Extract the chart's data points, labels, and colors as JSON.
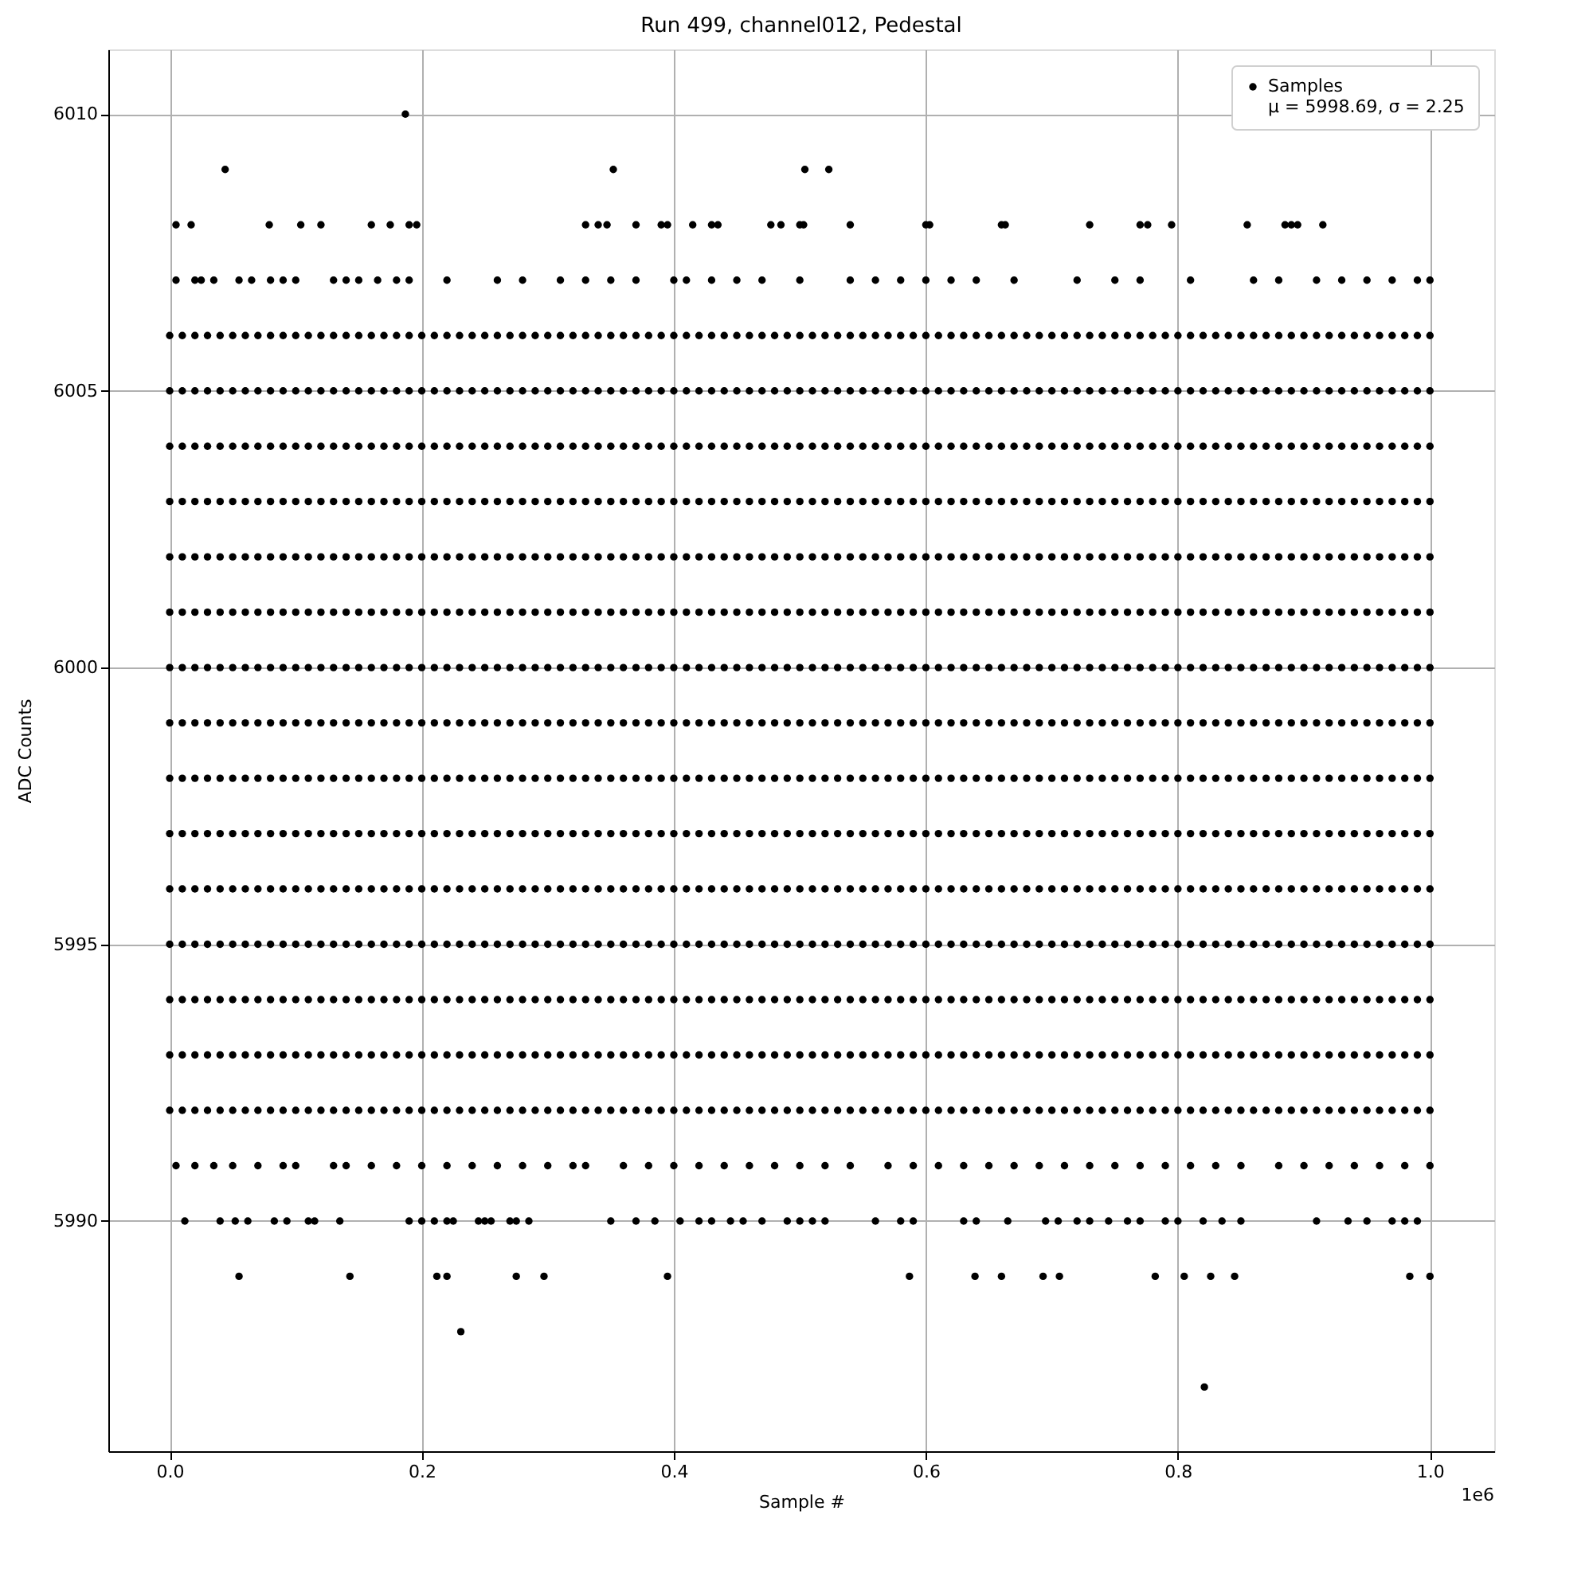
{
  "chart_data": {
    "type": "scatter",
    "title": "Run 499, channel012, Pedestal",
    "xlabel": "Sample #",
    "ylabel": "ADC Counts",
    "annotations": [
      "1e6"
    ],
    "xlim": [
      -0.0487,
      1.051
    ],
    "ylim": [
      5985.84,
      6011.17
    ],
    "xticks": [
      {
        "value": 0,
        "label": "0.0"
      },
      0.2,
      0.4,
      0.6,
      0.8,
      {
        "value": 1,
        "label": "1.0"
      }
    ],
    "yticks": [
      5990,
      5995,
      6000,
      6005,
      6010
    ],
    "grid": true,
    "legend": "top right",
    "marker": "circle",
    "x": [
      0,
      0.01,
      0.02,
      0.03,
      0.04,
      0.05,
      0.06,
      0.07,
      0.08,
      0.09,
      0.1,
      0.11,
      0.12,
      0.13,
      0.14,
      0.15,
      0.16,
      0.17,
      0.18,
      0.19,
      0.2,
      0.21,
      0.22,
      0.23,
      0.24,
      0.25,
      0.26,
      0.27,
      0.28,
      0.29,
      0.3,
      0.31,
      0.32,
      0.33,
      0.34,
      0.35,
      0.36,
      0.37,
      0.38,
      0.39,
      0.4,
      0.41,
      0.42,
      0.43,
      0.44,
      0.45,
      0.46,
      0.47,
      0.48,
      0.49,
      0.5,
      0.51,
      0.52,
      0.53,
      0.54,
      0.55,
      0.56,
      0.57,
      0.58,
      0.59,
      0.6,
      0.61,
      0.62,
      0.63,
      0.64,
      0.65,
      0.66,
      0.67,
      0.68,
      0.69,
      0.7,
      0.71,
      0.72,
      0.73,
      0.74,
      0.75,
      0.76,
      0.77,
      0.78,
      0.79,
      0.8,
      0.81,
      0.82,
      0.83,
      0.84,
      0.85,
      0.86,
      0.87,
      0.88,
      0.89,
      0.9,
      0.91,
      0.92,
      0.93,
      0.94,
      0.95,
      0.96,
      0.97,
      0.98,
      0.99,
      1.0
    ],
    "series": [
      {
        "name": "Samples\nμ = 5998.69, σ = 2.25",
        "color": "#000000",
        "values": [
          6000,
          6000,
          6000,
          6000,
          6000,
          6000,
          6000,
          6000,
          6000,
          6000,
          6000,
          6000,
          6000,
          6000,
          6000,
          6000,
          6000,
          6000,
          6000,
          6000,
          6000,
          6000,
          6000,
          6000,
          6000,
          6000,
          6000,
          6000,
          6000,
          6000,
          6000,
          6000,
          6000,
          6000,
          6000,
          6000,
          6000,
          6000,
          6000,
          6000,
          6000,
          6000,
          6000,
          6000,
          6000,
          6000,
          6000,
          6000,
          6000,
          6000,
          6000,
          6000,
          6000,
          6000,
          6000,
          6000,
          6000,
          6000,
          6000,
          6000,
          6000,
          6000,
          6000,
          6000,
          6000,
          6000,
          6000,
          6000,
          6000,
          6000,
          6000,
          6000,
          6000,
          6000,
          6000,
          6000,
          6000,
          6000,
          6000,
          6000,
          6000,
          6000,
          6000,
          6000,
          6000,
          6000,
          6000,
          6000,
          6000,
          6000,
          6000,
          6000,
          6000,
          6000,
          6000,
          6000,
          6000,
          6000,
          6000,
          6000,
          6000
        ]
      },
      {
        "color": "#000000",
        "values": [
          5992,
          5992,
          5992,
          5992,
          5992,
          5992,
          5992,
          5992,
          5992,
          5992,
          5992,
          5992,
          5992,
          5992,
          5992,
          5992,
          5992,
          5992,
          5992,
          5992,
          5992,
          5992,
          5992,
          5992,
          5992,
          5992,
          5992,
          5992,
          5992,
          5992,
          5992,
          5992,
          5992,
          5992,
          5992,
          5992,
          5992,
          5992,
          5992,
          5992,
          5992,
          5992,
          5992,
          5992,
          5992,
          5992,
          5992,
          5992,
          5992,
          5992,
          5992,
          5992,
          5992,
          5992,
          5992,
          5992,
          5992,
          5992,
          5992,
          5992,
          5992,
          5992,
          5992,
          5992,
          5992,
          5992,
          5992,
          5992,
          5992,
          5992,
          5992,
          5992,
          5992,
          5992,
          5992,
          5992,
          5992,
          5992,
          5992,
          5992,
          5992,
          5992,
          5992,
          5992,
          5992,
          5992,
          5992,
          5992,
          5992,
          5992,
          5992,
          5992,
          5992,
          5992,
          5992,
          5992,
          5992,
          5992,
          5992,
          5992,
          5992
        ]
      },
      {
        "color": "#000000",
        "values": [
          5993,
          5993,
          5993,
          5993,
          5993,
          5993,
          5993,
          5993,
          5993,
          5993,
          5993,
          5993,
          5993,
          5993,
          5993,
          5993,
          5993,
          5993,
          5993,
          5993,
          5993,
          5993,
          5993,
          5993,
          5993,
          5993,
          5993,
          5993,
          5993,
          5993,
          5993,
          5993,
          5993,
          5993,
          5993,
          5993,
          5993,
          5993,
          5993,
          5993,
          5993,
          5993,
          5993,
          5993,
          5993,
          5993,
          5993,
          5993,
          5993,
          5993,
          5993,
          5993,
          5993,
          5993,
          5993,
          5993,
          5993,
          5993,
          5993,
          5993,
          5993,
          5993,
          5993,
          5993,
          5993,
          5993,
          5993,
          5993,
          5993,
          5993,
          5993,
          5993,
          5993,
          5993,
          5993,
          5993,
          5993,
          5993,
          5993,
          5993,
          5993,
          5993,
          5993,
          5993,
          5993,
          5993,
          5993,
          5993,
          5993,
          5993,
          5993,
          5993,
          5993,
          5993,
          5993,
          5993,
          5993,
          5993,
          5993,
          5993,
          5993
        ]
      },
      {
        "color": "#000000",
        "values": [
          5994,
          5994,
          5994,
          5994,
          5994,
          5994,
          5994,
          5994,
          5994,
          5994,
          5994,
          5994,
          5994,
          5994,
          5994,
          5994,
          5994,
          5994,
          5994,
          5994,
          5994,
          5994,
          5994,
          5994,
          5994,
          5994,
          5994,
          5994,
          5994,
          5994,
          5994,
          5994,
          5994,
          5994,
          5994,
          5994,
          5994,
          5994,
          5994,
          5994,
          5994,
          5994,
          5994,
          5994,
          5994,
          5994,
          5994,
          5994,
          5994,
          5994,
          5994,
          5994,
          5994,
          5994,
          5994,
          5994,
          5994,
          5994,
          5994,
          5994,
          5994,
          5994,
          5994,
          5994,
          5994,
          5994,
          5994,
          5994,
          5994,
          5994,
          5994,
          5994,
          5994,
          5994,
          5994,
          5994,
          5994,
          5994,
          5994,
          5994,
          5994,
          5994,
          5994,
          5994,
          5994,
          5994,
          5994,
          5994,
          5994,
          5994,
          5994,
          5994,
          5994,
          5994,
          5994,
          5994,
          5994,
          5994,
          5994,
          5994,
          5994
        ]
      },
      {
        "color": "#000000",
        "values": [
          5995,
          5995,
          5995,
          5995,
          5995,
          5995,
          5995,
          5995,
          5995,
          5995,
          5995,
          5995,
          5995,
          5995,
          5995,
          5995,
          5995,
          5995,
          5995,
          5995,
          5995,
          5995,
          5995,
          5995,
          5995,
          5995,
          5995,
          5995,
          5995,
          5995,
          5995,
          5995,
          5995,
          5995,
          5995,
          5995,
          5995,
          5995,
          5995,
          5995,
          5995,
          5995,
          5995,
          5995,
          5995,
          5995,
          5995,
          5995,
          5995,
          5995,
          5995,
          5995,
          5995,
          5995,
          5995,
          5995,
          5995,
          5995,
          5995,
          5995,
          5995,
          5995,
          5995,
          5995,
          5995,
          5995,
          5995,
          5995,
          5995,
          5995,
          5995,
          5995,
          5995,
          5995,
          5995,
          5995,
          5995,
          5995,
          5995,
          5995,
          5995,
          5995,
          5995,
          5995,
          5995,
          5995,
          5995,
          5995,
          5995,
          5995,
          5995,
          5995,
          5995,
          5995,
          5995,
          5995,
          5995,
          5995,
          5995,
          5995,
          5995
        ]
      },
      {
        "color": "#000000",
        "values": [
          5996,
          5996,
          5996,
          5996,
          5996,
          5996,
          5996,
          5996,
          5996,
          5996,
          5996,
          5996,
          5996,
          5996,
          5996,
          5996,
          5996,
          5996,
          5996,
          5996,
          5996,
          5996,
          5996,
          5996,
          5996,
          5996,
          5996,
          5996,
          5996,
          5996,
          5996,
          5996,
          5996,
          5996,
          5996,
          5996,
          5996,
          5996,
          5996,
          5996,
          5996,
          5996,
          5996,
          5996,
          5996,
          5996,
          5996,
          5996,
          5996,
          5996,
          5996,
          5996,
          5996,
          5996,
          5996,
          5996,
          5996,
          5996,
          5996,
          5996,
          5996,
          5996,
          5996,
          5996,
          5996,
          5996,
          5996,
          5996,
          5996,
          5996,
          5996,
          5996,
          5996,
          5996,
          5996,
          5996,
          5996,
          5996,
          5996,
          5996,
          5996,
          5996,
          5996,
          5996,
          5996,
          5996,
          5996,
          5996,
          5996,
          5996,
          5996,
          5996,
          5996,
          5996,
          5996,
          5996,
          5996,
          5996,
          5996,
          5996,
          5996
        ]
      },
      {
        "color": "#000000",
        "values": [
          5997,
          5997,
          5997,
          5997,
          5997,
          5997,
          5997,
          5997,
          5997,
          5997,
          5997,
          5997,
          5997,
          5997,
          5997,
          5997,
          5997,
          5997,
          5997,
          5997,
          5997,
          5997,
          5997,
          5997,
          5997,
          5997,
          5997,
          5997,
          5997,
          5997,
          5997,
          5997,
          5997,
          5997,
          5997,
          5997,
          5997,
          5997,
          5997,
          5997,
          5997,
          5997,
          5997,
          5997,
          5997,
          5997,
          5997,
          5997,
          5997,
          5997,
          5997,
          5997,
          5997,
          5997,
          5997,
          5997,
          5997,
          5997,
          5997,
          5997,
          5997,
          5997,
          5997,
          5997,
          5997,
          5997,
          5997,
          5997,
          5997,
          5997,
          5997,
          5997,
          5997,
          5997,
          5997,
          5997,
          5997,
          5997,
          5997,
          5997,
          5997,
          5997,
          5997,
          5997,
          5997,
          5997,
          5997,
          5997,
          5997,
          5997,
          5997,
          5997,
          5997,
          5997,
          5997,
          5997,
          5997,
          5997,
          5997,
          5997,
          5997
        ]
      },
      {
        "color": "#000000",
        "values": [
          5998,
          5998,
          5998,
          5998,
          5998,
          5998,
          5998,
          5998,
          5998,
          5998,
          5998,
          5998,
          5998,
          5998,
          5998,
          5998,
          5998,
          5998,
          5998,
          5998,
          5998,
          5998,
          5998,
          5998,
          5998,
          5998,
          5998,
          5998,
          5998,
          5998,
          5998,
          5998,
          5998,
          5998,
          5998,
          5998,
          5998,
          5998,
          5998,
          5998,
          5998,
          5998,
          5998,
          5998,
          5998,
          5998,
          5998,
          5998,
          5998,
          5998,
          5998,
          5998,
          5998,
          5998,
          5998,
          5998,
          5998,
          5998,
          5998,
          5998,
          5998,
          5998,
          5998,
          5998,
          5998,
          5998,
          5998,
          5998,
          5998,
          5998,
          5998,
          5998,
          5998,
          5998,
          5998,
          5998,
          5998,
          5998,
          5998,
          5998,
          5998,
          5998,
          5998,
          5998,
          5998,
          5998,
          5998,
          5998,
          5998,
          5998,
          5998,
          5998,
          5998,
          5998,
          5998,
          5998,
          5998,
          5998,
          5998,
          5998,
          5998
        ]
      },
      {
        "color": "#000000",
        "values": [
          5999,
          5999,
          5999,
          5999,
          5999,
          5999,
          5999,
          5999,
          5999,
          5999,
          5999,
          5999,
          5999,
          5999,
          5999,
          5999,
          5999,
          5999,
          5999,
          5999,
          5999,
          5999,
          5999,
          5999,
          5999,
          5999,
          5999,
          5999,
          5999,
          5999,
          5999,
          5999,
          5999,
          5999,
          5999,
          5999,
          5999,
          5999,
          5999,
          5999,
          5999,
          5999,
          5999,
          5999,
          5999,
          5999,
          5999,
          5999,
          5999,
          5999,
          5999,
          5999,
          5999,
          5999,
          5999,
          5999,
          5999,
          5999,
          5999,
          5999,
          5999,
          5999,
          5999,
          5999,
          5999,
          5999,
          5999,
          5999,
          5999,
          5999,
          5999,
          5999,
          5999,
          5999,
          5999,
          5999,
          5999,
          5999,
          5999,
          5999,
          5999,
          5999,
          5999,
          5999,
          5999,
          5999,
          5999,
          5999,
          5999,
          5999,
          5999,
          5999,
          5999,
          5999,
          5999,
          5999,
          5999,
          5999,
          5999,
          5999,
          5999
        ]
      },
      {
        "color": "#000000",
        "values": [
          6001,
          6001,
          6001,
          6001,
          6001,
          6001,
          6001,
          6001,
          6001,
          6001,
          6001,
          6001,
          6001,
          6001,
          6001,
          6001,
          6001,
          6001,
          6001,
          6001,
          6001,
          6001,
          6001,
          6001,
          6001,
          6001,
          6001,
          6001,
          6001,
          6001,
          6001,
          6001,
          6001,
          6001,
          6001,
          6001,
          6001,
          6001,
          6001,
          6001,
          6001,
          6001,
          6001,
          6001,
          6001,
          6001,
          6001,
          6001,
          6001,
          6001,
          6001,
          6001,
          6001,
          6001,
          6001,
          6001,
          6001,
          6001,
          6001,
          6001,
          6001,
          6001,
          6001,
          6001,
          6001,
          6001,
          6001,
          6001,
          6001,
          6001,
          6001,
          6001,
          6001,
          6001,
          6001,
          6001,
          6001,
          6001,
          6001,
          6001,
          6001,
          6001,
          6001,
          6001,
          6001,
          6001,
          6001,
          6001,
          6001,
          6001,
          6001,
          6001,
          6001,
          6001,
          6001,
          6001,
          6001,
          6001,
          6001,
          6001,
          6001
        ]
      },
      {
        "color": "#000000",
        "values": [
          6002,
          6002,
          6002,
          6002,
          6002,
          6002,
          6002,
          6002,
          6002,
          6002,
          6002,
          6002,
          6002,
          6002,
          6002,
          6002,
          6002,
          6002,
          6002,
          6002,
          6002,
          6002,
          6002,
          6002,
          6002,
          6002,
          6002,
          6002,
          6002,
          6002,
          6002,
          6002,
          6002,
          6002,
          6002,
          6002,
          6002,
          6002,
          6002,
          6002,
          6002,
          6002,
          6002,
          6002,
          6002,
          6002,
          6002,
          6002,
          6002,
          6002,
          6002,
          6002,
          6002,
          6002,
          6002,
          6002,
          6002,
          6002,
          6002,
          6002,
          6002,
          6002,
          6002,
          6002,
          6002,
          6002,
          6002,
          6002,
          6002,
          6002,
          6002,
          6002,
          6002,
          6002,
          6002,
          6002,
          6002,
          6002,
          6002,
          6002,
          6002,
          6002,
          6002,
          6002,
          6002,
          6002,
          6002,
          6002,
          6002,
          6002,
          6002,
          6002,
          6002,
          6002,
          6002,
          6002,
          6002,
          6002,
          6002,
          6002,
          6002
        ]
      },
      {
        "color": "#000000",
        "values": [
          6003,
          6003,
          6003,
          6003,
          6003,
          6003,
          6003,
          6003,
          6003,
          6003,
          6003,
          6003,
          6003,
          6003,
          6003,
          6003,
          6003,
          6003,
          6003,
          6003,
          6003,
          6003,
          6003,
          6003,
          6003,
          6003,
          6003,
          6003,
          6003,
          6003,
          6003,
          6003,
          6003,
          6003,
          6003,
          6003,
          6003,
          6003,
          6003,
          6003,
          6003,
          6003,
          6003,
          6003,
          6003,
          6003,
          6003,
          6003,
          6003,
          6003,
          6003,
          6003,
          6003,
          6003,
          6003,
          6003,
          6003,
          6003,
          6003,
          6003,
          6003,
          6003,
          6003,
          6003,
          6003,
          6003,
          6003,
          6003,
          6003,
          6003,
          6003,
          6003,
          6003,
          6003,
          6003,
          6003,
          6003,
          6003,
          6003,
          6003,
          6003,
          6003,
          6003,
          6003,
          6003,
          6003,
          6003,
          6003,
          6003,
          6003,
          6003,
          6003,
          6003,
          6003,
          6003,
          6003,
          6003,
          6003,
          6003,
          6003,
          6003
        ]
      },
      {
        "color": "#000000",
        "values": [
          6004,
          6004,
          6004,
          6004,
          6004,
          6004,
          6004,
          6004,
          6004,
          6004,
          6004,
          6004,
          6004,
          6004,
          6004,
          6004,
          6004,
          6004,
          6004,
          6004,
          6004,
          6004,
          6004,
          6004,
          6004,
          6004,
          6004,
          6004,
          6004,
          6004,
          6004,
          6004,
          6004,
          6004,
          6004,
          6004,
          6004,
          6004,
          6004,
          6004,
          6004,
          6004,
          6004,
          6004,
          6004,
          6004,
          6004,
          6004,
          6004,
          6004,
          6004,
          6004,
          6004,
          6004,
          6004,
          6004,
          6004,
          6004,
          6004,
          6004,
          6004,
          6004,
          6004,
          6004,
          6004,
          6004,
          6004,
          6004,
          6004,
          6004,
          6004,
          6004,
          6004,
          6004,
          6004,
          6004,
          6004,
          6004,
          6004,
          6004,
          6004,
          6004,
          6004,
          6004,
          6004,
          6004,
          6004,
          6004,
          6004,
          6004,
          6004,
          6004,
          6004,
          6004,
          6004,
          6004,
          6004,
          6004,
          6004,
          6004,
          6004
        ]
      },
      {
        "color": "#000000",
        "values": [
          6005,
          6005,
          6005,
          6005,
          6005,
          6005,
          6005,
          6005,
          6005,
          6005,
          6005,
          6005,
          6005,
          6005,
          6005,
          6005,
          6005,
          6005,
          6005,
          6005,
          6005,
          6005,
          6005,
          6005,
          6005,
          6005,
          6005,
          6005,
          6005,
          6005,
          6005,
          6005,
          6005,
          6005,
          6005,
          6005,
          6005,
          6005,
          6005,
          6005,
          6005,
          6005,
          6005,
          6005,
          6005,
          6005,
          6005,
          6005,
          6005,
          6005,
          6005,
          6005,
          6005,
          6005,
          6005,
          6005,
          6005,
          6005,
          6005,
          6005,
          6005,
          6005,
          6005,
          6005,
          6005,
          6005,
          6005,
          6005,
          6005,
          6005,
          6005,
          6005,
          6005,
          6005,
          6005,
          6005,
          6005,
          6005,
          6005,
          6005,
          6005,
          6005,
          6005,
          6005,
          6005,
          6005,
          6005,
          6005,
          6005,
          6005,
          6005,
          6005,
          6005,
          6005,
          6005,
          6005,
          6005,
          6005,
          6005,
          6005,
          6005
        ]
      },
      {
        "color": "#000000",
        "values": [
          6006,
          6006,
          6006,
          6006,
          6006,
          6006,
          6006,
          6006,
          6006,
          6006,
          6006,
          6006,
          6006,
          6006,
          6006,
          6006,
          6006,
          6006,
          6006,
          6006,
          6006,
          6006,
          6006,
          6006,
          6006,
          6006,
          6006,
          6006,
          6006,
          6006,
          6006,
          6006,
          6006,
          6006,
          6006,
          6006,
          6006,
          6006,
          6006,
          6006,
          6006,
          6006,
          6006,
          6006,
          6006,
          6006,
          6006,
          6006,
          6006,
          6006,
          6006,
          6006,
          6006,
          6006,
          6006,
          6006,
          6006,
          6006,
          6006,
          6006,
          6006,
          6006,
          6006,
          6006,
          6006,
          6006,
          6006,
          6006,
          6006,
          6006,
          6006,
          6006,
          6006,
          6006,
          6006,
          6006,
          6006,
          6006,
          6006,
          6006,
          6006,
          6006,
          6006,
          6006,
          6006,
          6006,
          6006,
          6006,
          6006,
          6006,
          6006,
          6006,
          6006,
          6006,
          6006,
          6006,
          6006,
          6006,
          6006,
          6006,
          6006
        ]
      },
      {
        "color": "#000000",
        "x": [
          0.187
        ],
        "values": [
          6010
        ]
      },
      {
        "color": "#000000",
        "x": [
          0.044,
          0.352,
          0.504,
          0.523
        ],
        "values": [
          6009,
          6009,
          6009,
          6009
        ]
      },
      {
        "color": "#000000",
        "x": [
          0.005,
          0.017,
          0.079,
          0.104,
          0.12,
          0.16,
          0.175,
          0.19,
          0.196,
          0.33,
          0.34,
          0.347,
          0.37,
          0.39,
          0.395,
          0.415,
          0.43,
          0.435,
          0.477,
          0.485,
          0.5,
          0.503,
          0.54,
          0.6,
          0.603,
          0.66,
          0.663,
          0.73,
          0.77,
          0.776,
          0.795,
          0.855,
          0.885,
          0.89,
          0.895,
          0.915
        ],
        "values": [
          6008,
          6008,
          6008,
          6008,
          6008,
          6008,
          6008,
          6008,
          6008,
          6008,
          6008,
          6008,
          6008,
          6008,
          6008,
          6008,
          6008,
          6008,
          6008,
          6008,
          6008,
          6008,
          6008,
          6008,
          6008,
          6008,
          6008,
          6008,
          6008,
          6008,
          6008,
          6008,
          6008,
          6008,
          6008,
          6008
        ]
      },
      {
        "color": "#000000",
        "x": [
          0.005,
          0.02,
          0.025,
          0.035,
          0.055,
          0.065,
          0.08,
          0.09,
          0.1,
          0.13,
          0.14,
          0.15,
          0.165,
          0.18,
          0.19,
          0.22,
          0.26,
          0.28,
          0.31,
          0.33,
          0.35,
          0.37,
          0.4,
          0.41,
          0.43,
          0.45,
          0.47,
          0.5,
          0.54,
          0.56,
          0.58,
          0.6,
          0.62,
          0.64,
          0.67,
          0.72,
          0.75,
          0.77,
          0.81,
          0.86,
          0.88,
          0.91,
          0.93,
          0.95,
          0.97,
          0.99,
          1.0
        ],
        "values": [
          6007,
          6007,
          6007,
          6007,
          6007,
          6007,
          6007,
          6007,
          6007,
          6007,
          6007,
          6007,
          6007,
          6007,
          6007,
          6007,
          6007,
          6007,
          6007,
          6007,
          6007,
          6007,
          6007,
          6007,
          6007,
          6007,
          6007,
          6007,
          6007,
          6007,
          6007,
          6007,
          6007,
          6007,
          6007,
          6007,
          6007,
          6007,
          6007,
          6007,
          6007,
          6007,
          6007,
          6007,
          6007,
          6007,
          6007
        ]
      },
      {
        "color": "#000000",
        "x": [
          0.005,
          0.02,
          0.035,
          0.05,
          0.07,
          0.09,
          0.1,
          0.13,
          0.14,
          0.16,
          0.18,
          0.2,
          0.22,
          0.24,
          0.26,
          0.28,
          0.3,
          0.32,
          0.33,
          0.36,
          0.38,
          0.4,
          0.42,
          0.44,
          0.46,
          0.48,
          0.5,
          0.52,
          0.54,
          0.57,
          0.59,
          0.61,
          0.63,
          0.65,
          0.67,
          0.69,
          0.71,
          0.73,
          0.75,
          0.77,
          0.79,
          0.81,
          0.83,
          0.85,
          0.88,
          0.9,
          0.92,
          0.94,
          0.96,
          0.98,
          1.0
        ],
        "values": [
          5991,
          5991,
          5991,
          5991,
          5991,
          5991,
          5991,
          5991,
          5991,
          5991,
          5991,
          5991,
          5991,
          5991,
          5991,
          5991,
          5991,
          5991,
          5991,
          5991,
          5991,
          5991,
          5991,
          5991,
          5991,
          5991,
          5991,
          5991,
          5991,
          5991,
          5991,
          5991,
          5991,
          5991,
          5991,
          5991,
          5991,
          5991,
          5991,
          5991,
          5991,
          5991,
          5991,
          5991,
          5991,
          5991,
          5991,
          5991,
          5991,
          5991,
          5991
        ]
      },
      {
        "color": "#000000",
        "x": [
          0.012,
          0.04,
          0.052,
          0.062,
          0.083,
          0.093,
          0.11,
          0.115,
          0.135,
          0.19,
          0.2,
          0.21,
          0.22,
          0.225,
          0.245,
          0.25,
          0.255,
          0.27,
          0.275,
          0.285,
          0.35,
          0.37,
          0.385,
          0.405,
          0.42,
          0.43,
          0.445,
          0.455,
          0.47,
          0.49,
          0.5,
          0.51,
          0.52,
          0.56,
          0.58,
          0.59,
          0.63,
          0.64,
          0.665,
          0.695,
          0.705,
          0.72,
          0.73,
          0.745,
          0.76,
          0.77,
          0.79,
          0.8,
          0.82,
          0.835,
          0.85,
          0.91,
          0.935,
          0.95,
          0.97,
          0.98,
          0.99
        ],
        "values": [
          5990,
          5990,
          5990,
          5990,
          5990,
          5990,
          5990,
          5990,
          5990,
          5990,
          5990,
          5990,
          5990,
          5990,
          5990,
          5990,
          5990,
          5990,
          5990,
          5990,
          5990,
          5990,
          5990,
          5990,
          5990,
          5990,
          5990,
          5990,
          5990,
          5990,
          5990,
          5990,
          5990,
          5990,
          5990,
          5990,
          5990,
          5990,
          5990,
          5990,
          5990,
          5990,
          5990,
          5990,
          5990,
          5990,
          5990,
          5990,
          5990,
          5990,
          5990,
          5990,
          5990,
          5990,
          5990,
          5990,
          5990
        ]
      },
      {
        "color": "#000000",
        "x": [
          0.055,
          0.143,
          0.212,
          0.22,
          0.275,
          0.297,
          0.395,
          0.587,
          0.639,
          0.66,
          0.693,
          0.706,
          0.782,
          0.805,
          0.826,
          0.845,
          0.984,
          1.0
        ],
        "values": [
          5989,
          5989,
          5989,
          5989,
          5989,
          5989,
          5989,
          5989,
          5989,
          5989,
          5989,
          5989,
          5989,
          5989,
          5989,
          5989,
          5989,
          5989
        ]
      },
      {
        "color": "#000000",
        "x": [
          0.231
        ],
        "values": [
          5988
        ]
      },
      {
        "color": "#000000",
        "x": [
          0.821
        ],
        "values": [
          5987
        ]
      }
    ]
  }
}
